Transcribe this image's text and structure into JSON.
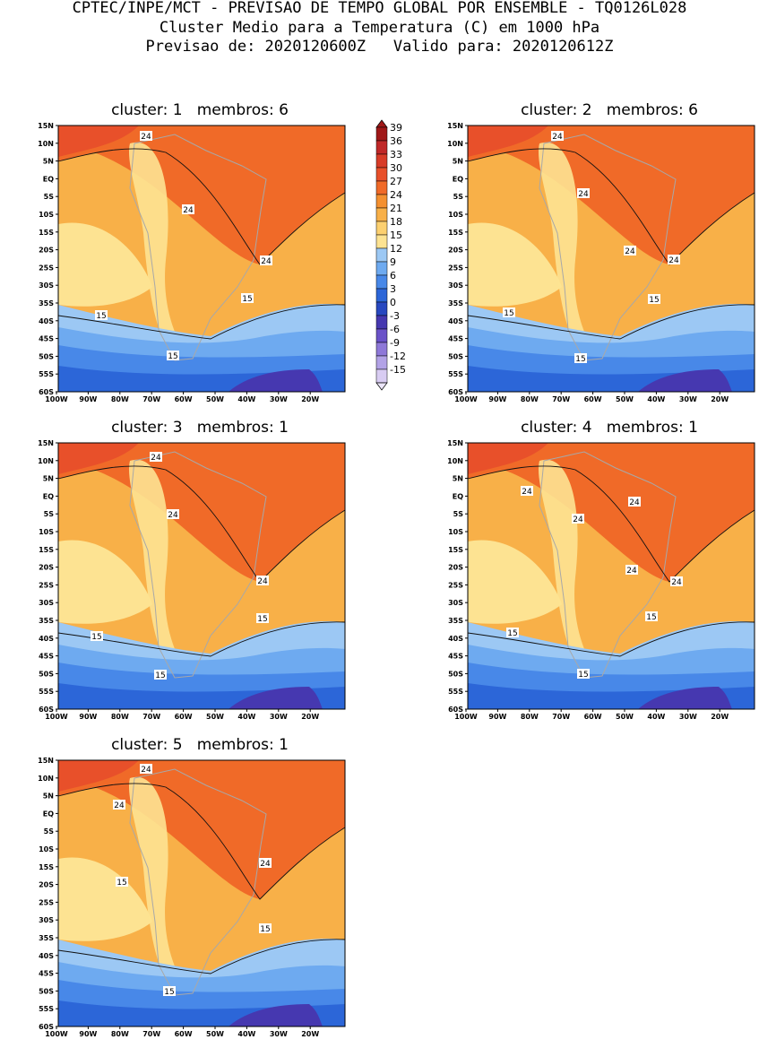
{
  "header": {
    "line1": "CPTEC/INPE/MCT - PREVISAO DE TEMPO GLOBAL POR ENSEMBLE - TQ0126L028",
    "line2": "Cluster Medio para a Temperatura (C) em 1000 hPa",
    "line3": "Previsao de: 2020120600Z   Valido para: 2020120612Z"
  },
  "panels": [
    {
      "title": "cluster: 1   membros: 6",
      "contour_labels": [
        "24",
        "24",
        "24",
        "15",
        "15",
        "15"
      ]
    },
    {
      "title": "cluster: 2   membros: 6",
      "contour_labels": [
        "24",
        "24",
        "24",
        "24",
        "15",
        "15",
        "15"
      ]
    },
    {
      "title": "cluster: 3   membros: 1",
      "contour_labels": [
        "24",
        "24",
        "24",
        "15",
        "15",
        "15"
      ]
    },
    {
      "title": "cluster: 4   membros: 1",
      "contour_labels": [
        "24",
        "24",
        "24",
        "24",
        "24",
        "15",
        "15",
        "15"
      ]
    },
    {
      "title": "cluster: 5   membros: 1",
      "contour_labels": [
        "24",
        "24",
        "24",
        "15",
        "15",
        "15"
      ]
    }
  ],
  "axes": {
    "lat_ticks": [
      "15N",
      "10N",
      "5N",
      "EQ",
      "5S",
      "10S",
      "15S",
      "20S",
      "25S",
      "30S",
      "35S",
      "40S",
      "45S",
      "50S",
      "55S",
      "60S"
    ],
    "lon_ticks": [
      "100W",
      "90W",
      "80W",
      "70W",
      "60W",
      "50W",
      "40W",
      "30W",
      "20W"
    ]
  },
  "colorbar": {
    "labels": [
      "39",
      "36",
      "33",
      "30",
      "27",
      "24",
      "21",
      "18",
      "15",
      "12",
      "9",
      "6",
      "3",
      "0",
      "-3",
      "-6",
      "-9",
      "-12",
      "-15"
    ],
    "colors": [
      "#a01818",
      "#c02828",
      "#d83c28",
      "#e8502a",
      "#f06a28",
      "#f49030",
      "#f8b048",
      "#fcd070",
      "#fde392",
      "#9cc8f4",
      "#6eaaf0",
      "#4888e8",
      "#2c66d8",
      "#2848c0",
      "#4638b0",
      "#6a52c8",
      "#8e78d8",
      "#b2a2e6",
      "#d8ccf2"
    ]
  }
}
